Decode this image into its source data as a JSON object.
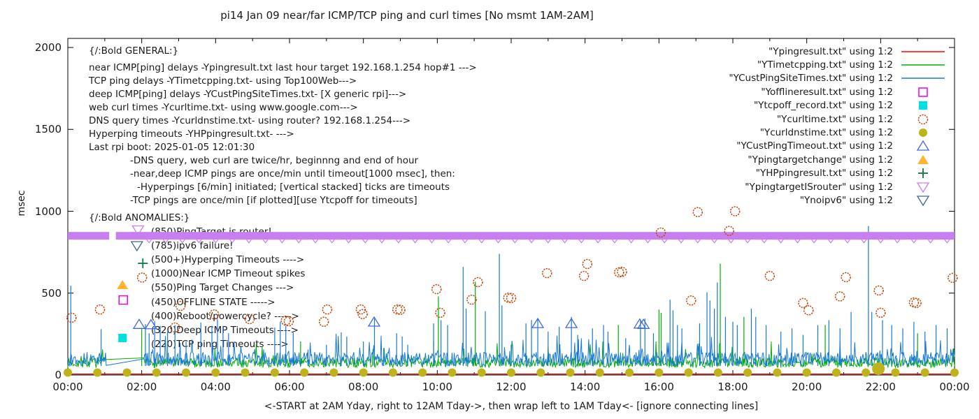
{
  "title": "pi14 Jan 09  near/far ICMP/TCP ping and curl times [No msmt 1AM-2AM]",
  "axes": {
    "y_label": "msec",
    "x_label": "<-START at 2AM Yday, right to 12AM Tday->, then wrap left to 1AM Tday<- [ignore connecting lines]",
    "y_ticks": [
      "0",
      "500",
      "1000",
      "1500",
      "2000"
    ],
    "x_ticks": [
      "00:00",
      "02:00",
      "04:00",
      "06:00",
      "08:00",
      "10:00",
      "12:00",
      "14:00",
      "16:00",
      "18:00",
      "20:00",
      "22:00",
      "00:00"
    ]
  },
  "annotations": {
    "general_header": "{/:Bold GENERAL:}",
    "general_lines": [
      "near ICMP[ping] delays -Ypingresult.txt last hour target 192.168.1.254 hop#1 --->",
      "TCP ping delays -YTimetcpping.txt- using Top100Web--->",
      "deep ICMP[ping] delays -YCustPingSiteTimes.txt- [X generic rpi]--->",
      "web curl times -Ycurltime.txt- using www.google.com--->",
      "DNS query times -Ycurldnstime.txt- using router? 192.168.1.254--->",
      "Hyperping timeouts -YHPpingresult.txt- --->",
      "Last rpi boot: 2025-01-05 12:01:30",
      "-DNS query, web curl are twice/hr, beginnng and end of hour",
      "-near,deep ICMP pings are once/min until timeout[1000 msec], then:",
      "-Hyperpings [6/min] initiated; [vertical stacked] ticks are timeouts",
      "-TCP pings are once/min [if plotted][use Ytcpoff for timeouts]"
    ],
    "anomalies_header": "{/:Bold ANOMALIES:}",
    "anomaly_lines": [
      "(850)PingTarget is router!",
      "(785)ipv6 failure!",
      "(500+)Hyperping Timeouts ---->",
      "(1000)Near ICMP Timeout spikes",
      "(550)Ping Target Changes --->",
      "(450)OFFLINE STATE ----->",
      "(400)Reboot/powercycle? ----->",
      "(320)Deep ICMP Timeouts ---->",
      "(220)TCP ping Timeouts ---->"
    ]
  },
  "chart_data": {
    "type": "line+scatter",
    "x_unit": "hour_of_day",
    "x_range": [
      0,
      24
    ],
    "y_range": [
      0,
      2050
    ],
    "ylabel": "msec",
    "gap_no_measurement_hours": [
      1.05,
      2.05
    ],
    "series": [
      {
        "name": "Ypingresult",
        "legend_label": "\"Ypingresult.txt\" using 1:2",
        "marker": "line",
        "color": "#ff0000",
        "baseline_msec": 6
      },
      {
        "name": "YTimetcpping",
        "legend_label": "\"YTimetcpping.txt\" using 1:2",
        "marker": "line",
        "color": "#00b000",
        "baseline_band_msec": [
          45,
          105
        ],
        "spikes": [
          [
            2.0,
            285
          ],
          [
            6.3,
            205
          ],
          [
            9.9,
            205
          ],
          [
            10.03,
            480
          ],
          [
            11.03,
            570
          ],
          [
            12.0,
            185
          ],
          [
            14.9,
            305
          ],
          [
            16.0,
            400
          ],
          [
            16.06,
            380
          ],
          [
            17.66,
            680
          ],
          [
            18.3,
            355
          ],
          [
            20.5,
            305
          ],
          [
            23.0,
            255
          ]
        ]
      },
      {
        "name": "YCustPingSiteTimes",
        "legend_label": "\"YCustPingSiteTimes.txt\" using 1:2",
        "marker": "line",
        "color": "#1878d8",
        "baseline_band_msec": [
          55,
          140
        ],
        "spikes": [
          [
            0.08,
            545
          ],
          [
            0.9,
            280
          ],
          [
            2.1,
            310
          ],
          [
            2.2,
            255
          ],
          [
            2.35,
            330
          ],
          [
            2.5,
            300
          ],
          [
            2.7,
            265
          ],
          [
            2.9,
            305
          ],
          [
            3.2,
            205
          ],
          [
            3.6,
            320
          ],
          [
            3.9,
            300
          ],
          [
            4.05,
            340
          ],
          [
            4.2,
            300
          ],
          [
            4.35,
            255
          ],
          [
            5.6,
            290
          ],
          [
            5.75,
            325
          ],
          [
            5.9,
            300
          ],
          [
            6.1,
            260
          ],
          [
            6.5,
            155
          ],
          [
            7.0,
            185
          ],
          [
            7.4,
            260
          ],
          [
            7.55,
            235
          ],
          [
            8.0,
            205
          ],
          [
            8.3,
            345
          ],
          [
            8.55,
            165
          ],
          [
            8.9,
            255
          ],
          [
            9.05,
            235
          ],
          [
            9.2,
            185
          ],
          [
            9.9,
            315
          ],
          [
            10.1,
            335
          ],
          [
            10.28,
            305
          ],
          [
            10.7,
            660
          ],
          [
            10.78,
            405
          ],
          [
            11.3,
            390
          ],
          [
            11.68,
            740
          ],
          [
            11.75,
            425
          ],
          [
            12.4,
            315
          ],
          [
            12.55,
            335
          ],
          [
            12.72,
            345
          ],
          [
            13.0,
            265
          ],
          [
            13.3,
            295
          ],
          [
            13.63,
            355
          ],
          [
            13.8,
            245
          ],
          [
            14.2,
            285
          ],
          [
            14.5,
            305
          ],
          [
            14.62,
            265
          ],
          [
            15.1,
            225
          ],
          [
            15.5,
            335
          ],
          [
            15.62,
            345
          ],
          [
            15.85,
            255
          ],
          [
            16.3,
            460
          ],
          [
            16.38,
            395
          ],
          [
            16.5,
            305
          ],
          [
            16.62,
            285
          ],
          [
            17.1,
            315
          ],
          [
            17.3,
            505
          ],
          [
            17.38,
            455
          ],
          [
            17.5,
            405
          ],
          [
            17.58,
            565
          ],
          [
            17.8,
            355
          ],
          [
            18.0,
            325
          ],
          [
            18.12,
            305
          ],
          [
            18.5,
            405
          ],
          [
            18.62,
            355
          ],
          [
            18.9,
            305
          ],
          [
            19.3,
            265
          ],
          [
            19.6,
            285
          ],
          [
            19.9,
            245
          ],
          [
            20.3,
            305
          ],
          [
            20.6,
            335
          ],
          [
            20.9,
            285
          ],
          [
            21.2,
            385
          ],
          [
            21.67,
            910
          ],
          [
            21.76,
            385
          ],
          [
            22.05,
            335
          ],
          [
            22.3,
            305
          ],
          [
            22.6,
            285
          ],
          [
            22.9,
            325
          ],
          [
            23.2,
            265
          ],
          [
            23.5,
            305
          ],
          [
            23.8,
            285
          ]
        ]
      },
      {
        "name": "Yofflineresult",
        "legend_label": "\"Yofflineresult.txt\" using 1:2",
        "marker": "square-open",
        "color": "#ee00ee",
        "points": [
          [
            1.5,
            458
          ]
        ]
      },
      {
        "name": "Ytcpoff_record",
        "legend_label": "\"Ytcpoff_record.txt\" using 1:2",
        "marker": "square-filled",
        "color": "#00e0e0",
        "points": [
          [
            1.48,
            226
          ]
        ]
      },
      {
        "name": "Ycurltime",
        "legend_label": "\"Ycurltime.txt\" using 1:2",
        "marker": "circle-open",
        "color": "#bf4708",
        "points": [
          [
            0.1,
            350
          ],
          [
            0.87,
            400
          ],
          [
            2.01,
            595
          ],
          [
            2.9,
            290
          ],
          [
            3.05,
            422
          ],
          [
            3.96,
            370
          ],
          [
            4.92,
            341
          ],
          [
            5.9,
            332
          ],
          [
            5.98,
            328
          ],
          [
            6.93,
            325
          ],
          [
            7.02,
            400
          ],
          [
            7.93,
            400
          ],
          [
            7.98,
            372
          ],
          [
            8.92,
            400
          ],
          [
            9.0,
            398
          ],
          [
            9.98,
            524
          ],
          [
            10.08,
            380
          ],
          [
            10.93,
            460
          ],
          [
            11.1,
            567
          ],
          [
            11.92,
            472
          ],
          [
            12.0,
            470
          ],
          [
            12.97,
            622
          ],
          [
            13.97,
            605
          ],
          [
            14.06,
            678
          ],
          [
            14.92,
            627
          ],
          [
            15.0,
            630
          ],
          [
            16.05,
            870
          ],
          [
            16.87,
            455
          ],
          [
            17.05,
            995
          ],
          [
            17.9,
            880
          ],
          [
            18.06,
            1000
          ],
          [
            19.0,
            605
          ],
          [
            19.9,
            440
          ],
          [
            20.05,
            395
          ],
          [
            20.9,
            480
          ],
          [
            21.06,
            597
          ],
          [
            21.95,
            516
          ],
          [
            22.0,
            380
          ],
          [
            22.9,
            443
          ],
          [
            22.97,
            440
          ],
          [
            23.95,
            593
          ]
        ]
      },
      {
        "name": "Ycurldnstime",
        "legend_label": "\"Ycurldnstime.txt\" using 1:2",
        "marker": "circle-filled",
        "color": "#bfb31c",
        "points": [
          [
            0,
            15
          ],
          [
            0.8,
            15
          ],
          [
            1.6,
            15
          ],
          [
            2.4,
            15
          ],
          [
            3.2,
            15
          ],
          [
            4,
            15
          ],
          [
            4.8,
            15
          ],
          [
            5.6,
            15
          ],
          [
            6.4,
            15
          ],
          [
            7.2,
            15
          ],
          [
            8,
            15
          ],
          [
            8.8,
            15
          ],
          [
            9.6,
            15
          ],
          [
            10.4,
            15
          ],
          [
            11.2,
            15
          ],
          [
            12,
            15
          ],
          [
            12.8,
            15
          ],
          [
            13.6,
            15
          ],
          [
            14.4,
            15
          ],
          [
            15.2,
            15
          ],
          [
            16,
            15
          ],
          [
            16.8,
            15
          ],
          [
            17.6,
            15
          ],
          [
            18.4,
            15
          ],
          [
            19.2,
            15
          ],
          [
            20,
            15
          ],
          [
            20.8,
            15
          ],
          [
            21.6,
            15
          ],
          [
            22.4,
            15
          ],
          [
            23.2,
            15
          ],
          [
            24,
            15
          ]
        ],
        "highlight_points": [
          [
            21.94,
            38
          ]
        ]
      },
      {
        "name": "YCustPingTimeout",
        "legend_label": "\"YCustPingTimeout.txt\" using 1:2",
        "marker": "triangle-up-open",
        "color": "#4169e1",
        "points": [
          [
            1.93,
            310
          ],
          [
            2.25,
            308
          ],
          [
            8.29,
            324
          ],
          [
            12.72,
            315
          ],
          [
            13.63,
            315
          ],
          [
            15.48,
            312
          ],
          [
            15.58,
            310
          ]
        ]
      },
      {
        "name": "Ypingtargetchange",
        "legend_label": "\"Ypingtargetchange\" using 1:2",
        "marker": "triangle-up-filled",
        "color": "#ffb32e",
        "points": [
          [
            1.48,
            550
          ]
        ]
      },
      {
        "name": "YHPpingresult",
        "legend_label": "\"YHPpingresult.txt\" using 1:2",
        "marker": "plus",
        "color": "#127a42",
        "points": [
          [
            2.03,
            682
          ]
        ]
      },
      {
        "name": "YpingtargetISrouter",
        "legend_label": "\"YpingtargetISrouter\" using 1:2",
        "marker": "triangle-down-open",
        "color": "#c77ff0",
        "points": [
          [
            1.9,
            885
          ]
        ],
        "band": {
          "msec": 850,
          "segments_hours": [
            [
              0,
              1.12
            ],
            [
              1.3,
              24
            ]
          ],
          "tick_row": {
            "from": 2.2,
            "to": 23.9,
            "step": 0.45,
            "msec": 800
          }
        }
      },
      {
        "name": "Ynoipv6",
        "legend_label": "\"Ynoipv6\" using 1:2",
        "marker": "triangle-down-open",
        "color": "#3b6b88",
        "points": [
          [
            1.87,
            789
          ]
        ]
      }
    ]
  }
}
